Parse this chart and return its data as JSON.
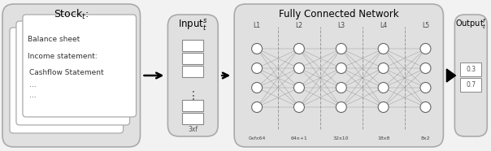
{
  "bg_color": "#e0e0e0",
  "white": "#ffffff",
  "black": "#000000",
  "box1_title": "Stock$_t$:",
  "box1_lines": [
    "Balance sheet",
    "Income statement:",
    "Cashflow Statement",
    "...",
    "..."
  ],
  "box2_title": "Input$_t^s$",
  "box2_label": "3xf",
  "box3_title": "Fully Connected Network",
  "box3_layer_labels": [
    "L1",
    "L2",
    "L3",
    "L4",
    "L5"
  ],
  "box3_dim_labels": [
    "0xfx64",
    "64x+1",
    "32x10",
    "18x8",
    "8x2"
  ],
  "box4_title": "Output$_t^f$",
  "out_vals": [
    "0.7",
    "0.3"
  ]
}
